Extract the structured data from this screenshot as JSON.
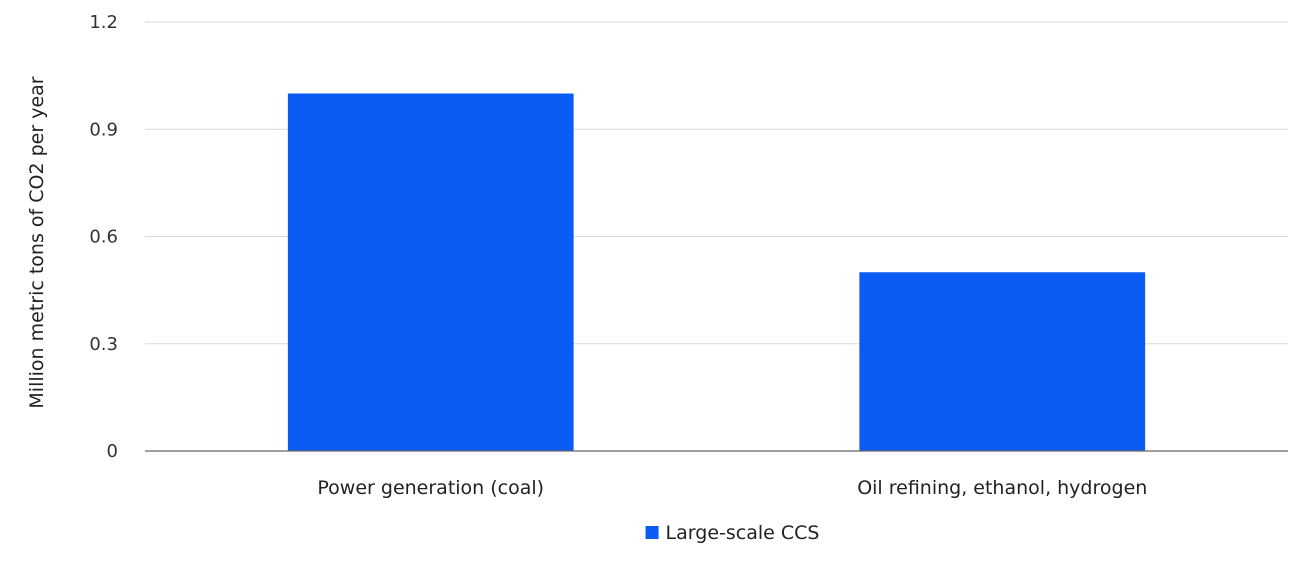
{
  "chart_data": {
    "type": "bar",
    "categories": [
      "Power generation (coal)",
      "Oil refining, ethanol, hydrogen"
    ],
    "series": [
      {
        "name": "Large-scale CCS",
        "values": [
          1.0,
          0.5
        ],
        "color": "#0a5cf5"
      }
    ],
    "title": "",
    "xlabel": "",
    "ylabel": "Million metric tons of CO2 per year",
    "ylim": [
      0,
      1.2
    ],
    "yticks": [
      0,
      0.3,
      0.6,
      0.9,
      1.2
    ],
    "ytick_labels": [
      "0",
      "0.3",
      "0.6",
      "0.9",
      "1.2"
    ],
    "grid": true,
    "legend_position": "bottom-center"
  }
}
